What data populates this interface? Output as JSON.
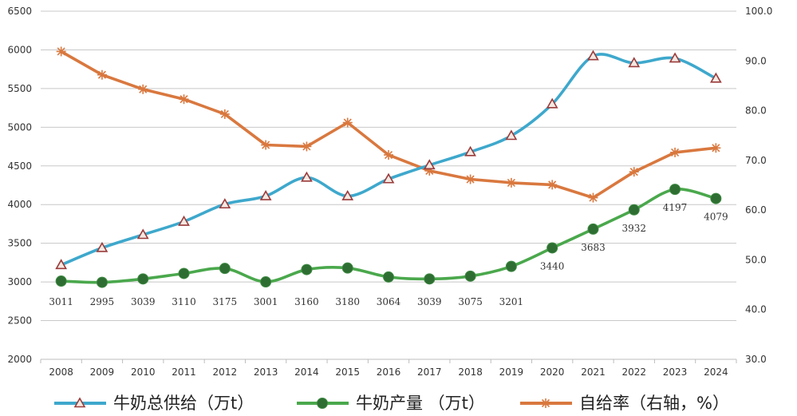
{
  "chart_data": {
    "type": "line",
    "title": "",
    "categories": [
      "2008",
      "2009",
      "2010",
      "2011",
      "2012",
      "2013",
      "2014",
      "2015",
      "2016",
      "2017",
      "2018",
      "2019",
      "2020",
      "2021",
      "2022",
      "2023",
      "2024"
    ],
    "y_left": {
      "min": 2000,
      "max": 6500,
      "step": 500,
      "ticks": [
        "2000",
        "2500",
        "3000",
        "3500",
        "4000",
        "4500",
        "5000",
        "5500",
        "6000",
        "6500"
      ]
    },
    "y_right": {
      "min": 30,
      "max": 100,
      "step": 10,
      "ticks": [
        "30.0",
        "40.0",
        "50.0",
        "60.0",
        "70.0",
        "80.0",
        "90.0",
        "100.0"
      ]
    },
    "grid": true,
    "legend_position": "bottom",
    "series": [
      {
        "name": "牛奶总供给（万t）",
        "axis": "left",
        "color": "#3ea8cc",
        "marker": "triangle",
        "marker_color": "#9a3b3b",
        "values": [
          3220,
          3440,
          3610,
          3780,
          4005,
          4110,
          4350,
          4110,
          4330,
          4510,
          4680,
          4890,
          5300,
          5920,
          5830,
          5890,
          5630
        ]
      },
      {
        "name": "牛奶产量 （万t）",
        "axis": "left",
        "color": "#4aa84c",
        "marker": "circle",
        "marker_color": "#2e6e32",
        "values": [
          3011,
          2995,
          3039,
          3110,
          3175,
          3001,
          3160,
          3180,
          3064,
          3039,
          3075,
          3201,
          3440,
          3683,
          3932,
          4197,
          4079
        ],
        "labels": [
          "3011",
          "2995",
          "3039",
          "3110",
          "3175",
          "3001",
          "3160",
          "3180",
          "3064",
          "3039",
          "3075",
          "3201",
          "3440",
          "3683",
          "3932",
          "4197",
          "4079"
        ]
      },
      {
        "name": "自给率（右轴，%）",
        "axis": "right",
        "color": "#d9783f",
        "marker": "asterisk",
        "marker_color": "#d9783f",
        "values": [
          91.9,
          87.2,
          84.3,
          82.3,
          79.3,
          73.1,
          72.8,
          77.6,
          71.1,
          67.9,
          66.2,
          65.5,
          65.1,
          62.5,
          67.7,
          71.6,
          72.5
        ]
      }
    ]
  }
}
